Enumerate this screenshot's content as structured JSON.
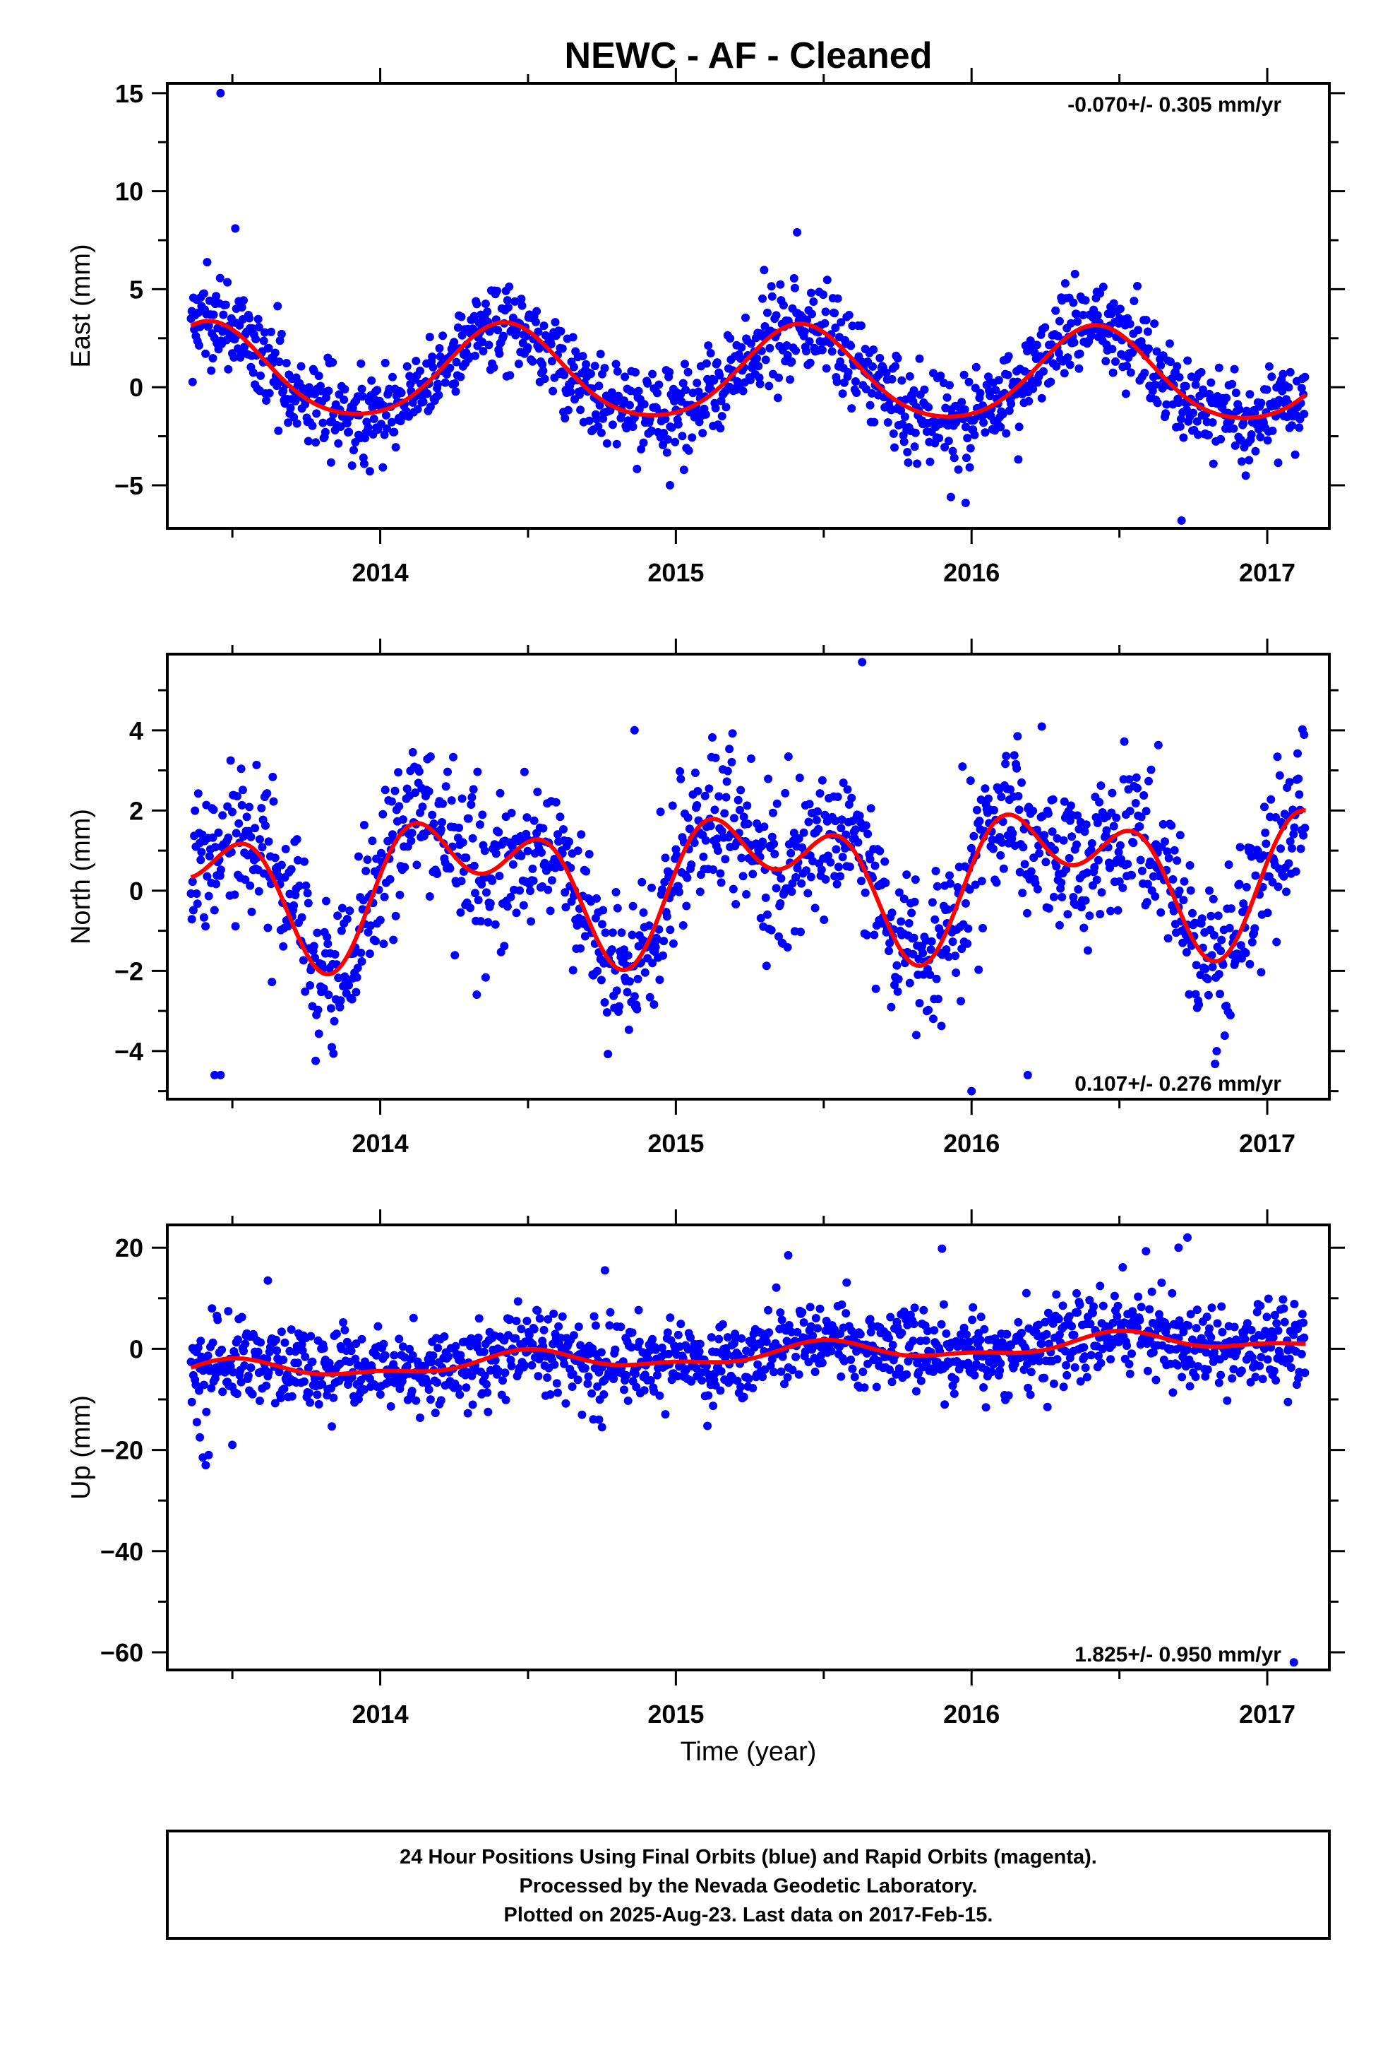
{
  "title": "NEWC  - AF - Cleaned",
  "xlabel": "Time (year)",
  "caption": {
    "lines": [
      "24 Hour Positions Using Final Orbits (blue) and Rapid Orbits (magenta).",
      "Processed by the Nevada Geodetic Laboratory.",
      "Plotted on 2025-Aug-23. Last data on 2017-Feb-15."
    ]
  },
  "colors": {
    "final_orbits": "#0000ff",
    "fit_curve": "#ff0000",
    "frame": "#000000"
  },
  "chart_data": [
    {
      "type": "scatter",
      "ylabel": "East (mm)",
      "rate_label": "-0.070+/- 0.305 mm/yr",
      "rate_label_position": "top-right",
      "xlim": [
        2013.28,
        2017.21
      ],
      "ylim": [
        -7.2,
        15.5
      ],
      "xticks": [
        "2014",
        "2015",
        "2016",
        "2017"
      ],
      "yticks": [
        "−5",
        "0",
        "5",
        "10",
        "15"
      ],
      "ytick_values": [
        -5,
        0,
        5,
        10,
        15
      ],
      "data_range": [
        2013.36,
        2017.13
      ],
      "fit": {
        "offset": 0.6,
        "a1": 2.35,
        "p1": 2013.42,
        "a2": 0.3,
        "p2": 2013.42,
        "trend": -0.07
      },
      "noise_sd": 1.15,
      "outliers": [
        [
          2013.46,
          15.0
        ],
        [
          2013.51,
          8.1
        ],
        [
          2015.41,
          7.9
        ],
        [
          2016.71,
          -6.8
        ],
        [
          2015.93,
          -5.6
        ],
        [
          2015.98,
          -5.9
        ],
        [
          2014.98,
          -5.0
        ]
      ],
      "series": [
        {
          "name": "",
          "color": "#0000ff"
        }
      ]
    },
    {
      "type": "scatter",
      "ylabel": "North (mm)",
      "rate_label": "0.107+/- 0.276 mm/yr",
      "rate_label_position": "bottom-right",
      "xlim": [
        2013.28,
        2017.21
      ],
      "ylim": [
        -5.2,
        5.9
      ],
      "xticks": [
        "2014",
        "2015",
        "2016",
        "2017"
      ],
      "yticks": [
        "−4",
        "−2",
        "0",
        "2",
        "4"
      ],
      "ytick_values": [
        -4,
        -2,
        0,
        2,
        4
      ],
      "data_range": [
        2013.36,
        2017.13
      ],
      "fit": {
        "offset": 0.35,
        "a1": 1.25,
        "p1": 2013.3,
        "a2": 1.05,
        "p2": 2013.58,
        "trend": 0.107
      },
      "noise_sd": 0.95,
      "outliers": [
        [
          2013.44,
          -4.6
        ],
        [
          2013.46,
          -4.6
        ],
        [
          2015.63,
          5.7
        ],
        [
          2016.0,
          -5.0
        ],
        [
          2016.19,
          -4.6
        ],
        [
          2014.86,
          4.0
        ]
      ],
      "series": [
        {
          "name": "",
          "color": "#0000ff"
        }
      ]
    },
    {
      "type": "scatter",
      "ylabel": "Up (mm)",
      "rate_label": "1.825+/- 0.950 mm/yr",
      "rate_label_position": "bottom-right",
      "xlim": [
        2013.28,
        2017.21
      ],
      "ylim": [
        -63.5,
        24.5
      ],
      "xticks": [
        "2014",
        "2015",
        "2016",
        "2017"
      ],
      "yticks": [
        "−60",
        "−40",
        "−20",
        "0",
        "20"
      ],
      "ytick_values": [
        -60,
        -40,
        -20,
        0,
        20
      ],
      "data_range": [
        2013.36,
        2017.13
      ],
      "fit": {
        "offset": -1.2,
        "a1": 1.7,
        "p1": 2013.5,
        "a2": 0.8,
        "p2": 2013.5,
        "trend": 1.825
      },
      "noise_sd": 4.2,
      "outliers": [
        [
          2013.38,
          -14.5
        ],
        [
          2013.39,
          -17.5
        ],
        [
          2013.4,
          -21.5
        ],
        [
          2013.41,
          -23.0
        ],
        [
          2013.42,
          -21.0
        ],
        [
          2013.5,
          -19.0
        ],
        [
          2013.62,
          13.5
        ],
        [
          2014.74,
          -14.0
        ],
        [
          2014.75,
          -15.5
        ],
        [
          2014.76,
          15.5
        ],
        [
          2015.38,
          18.5
        ],
        [
          2015.9,
          19.8
        ],
        [
          2016.59,
          19.3
        ],
        [
          2016.7,
          20.0
        ],
        [
          2016.73,
          22.0
        ],
        [
          2017.09,
          -62.0
        ],
        [
          2017.07,
          -10.5
        ]
      ],
      "series": [
        {
          "name": "",
          "color": "#0000ff"
        }
      ]
    }
  ]
}
